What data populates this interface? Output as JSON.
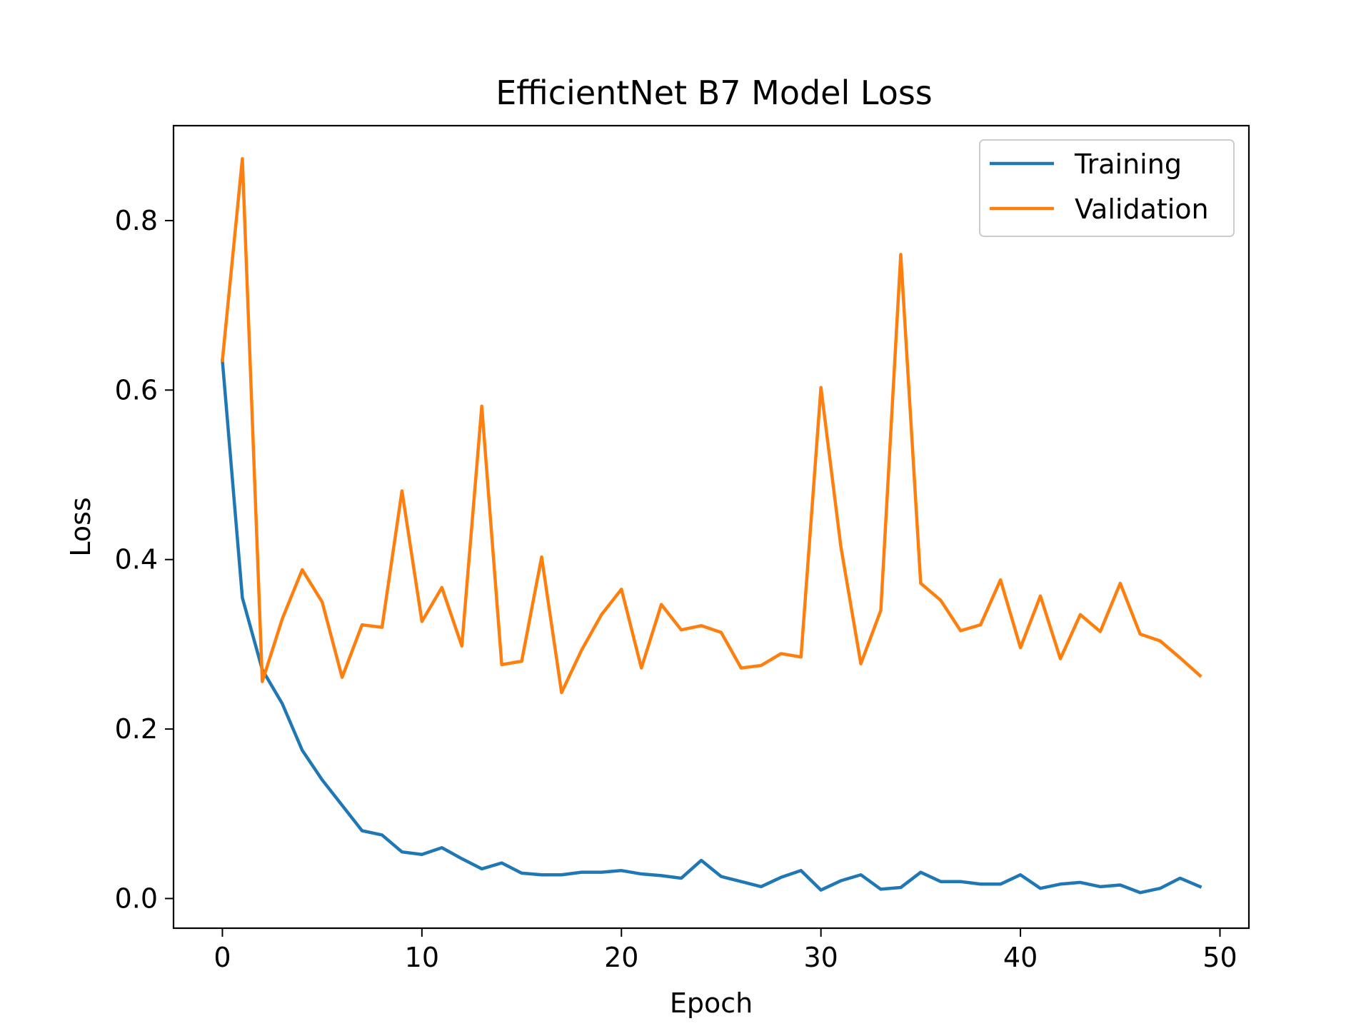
{
  "chart_data": {
    "type": "line",
    "title": "EfficientNet B7 Model Loss",
    "xlabel": "Epoch",
    "ylabel": "Loss",
    "xlim": [
      -2.45,
      51.45
    ],
    "ylim": [
      -0.035,
      0.912
    ],
    "xticks": [
      0,
      10,
      20,
      30,
      40,
      50
    ],
    "xtick_labels": [
      "0",
      "10",
      "20",
      "30",
      "40",
      "50"
    ],
    "yticks": [
      0.0,
      0.2,
      0.4,
      0.6,
      0.8
    ],
    "ytick_labels": [
      "0.0",
      "0.2",
      "0.4",
      "0.6",
      "0.8"
    ],
    "grid": false,
    "legend_position": "top-right",
    "x": [
      0,
      1,
      2,
      3,
      4,
      5,
      6,
      7,
      8,
      9,
      10,
      11,
      12,
      13,
      14,
      15,
      16,
      17,
      18,
      19,
      20,
      21,
      22,
      23,
      24,
      25,
      26,
      27,
      28,
      29,
      30,
      31,
      32,
      33,
      34,
      35,
      36,
      37,
      38,
      39,
      40,
      41,
      42,
      43,
      44,
      45,
      46,
      47,
      48,
      49
    ],
    "series": [
      {
        "name": "Training",
        "color": "#1f77b4",
        "values": [
          0.635,
          0.355,
          0.27,
          0.23,
          0.175,
          0.14,
          0.11,
          0.08,
          0.075,
          0.055,
          0.052,
          0.06,
          0.047,
          0.035,
          0.042,
          0.03,
          0.028,
          0.028,
          0.031,
          0.031,
          0.033,
          0.029,
          0.027,
          0.024,
          0.045,
          0.026,
          0.02,
          0.014,
          0.025,
          0.033,
          0.01,
          0.021,
          0.028,
          0.011,
          0.013,
          0.031,
          0.02,
          0.02,
          0.017,
          0.017,
          0.028,
          0.012,
          0.017,
          0.019,
          0.014,
          0.016,
          0.007,
          0.012,
          0.024,
          0.014
        ]
      },
      {
        "name": "Validation",
        "color": "#ff7f0e",
        "values": [
          0.635,
          0.873,
          0.256,
          0.33,
          0.388,
          0.35,
          0.261,
          0.323,
          0.32,
          0.481,
          0.327,
          0.367,
          0.298,
          0.581,
          0.276,
          0.28,
          0.403,
          0.243,
          0.293,
          0.335,
          0.365,
          0.272,
          0.347,
          0.317,
          0.322,
          0.314,
          0.272,
          0.275,
          0.289,
          0.285,
          0.603,
          0.415,
          0.277,
          0.34,
          0.76,
          0.372,
          0.352,
          0.316,
          0.323,
          0.376,
          0.296,
          0.357,
          0.283,
          0.335,
          0.315,
          0.372,
          0.312,
          0.304,
          0.284,
          0.263
        ]
      }
    ]
  }
}
